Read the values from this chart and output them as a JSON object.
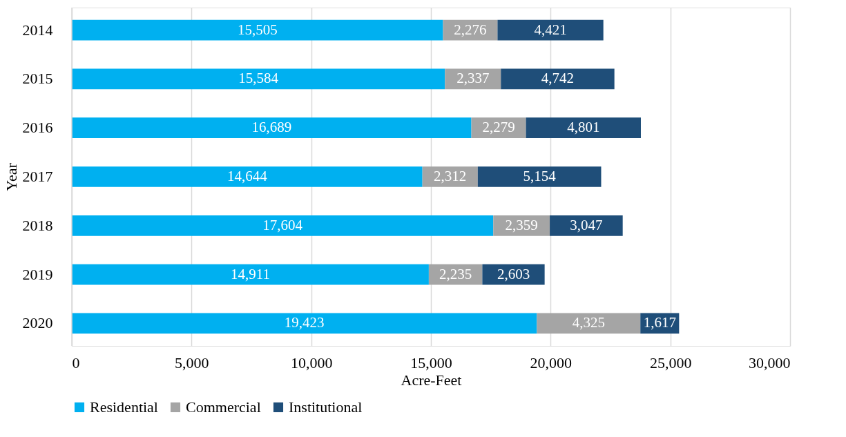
{
  "chart_data": {
    "type": "bar",
    "orientation": "horizontal",
    "stacked": true,
    "xlabel": "Acre-Feet",
    "ylabel": "Year",
    "categories": [
      "2014",
      "2015",
      "2016",
      "2017",
      "2018",
      "2019",
      "2020"
    ],
    "series": [
      {
        "name": "Residential",
        "color": "#00b0f0",
        "values": [
          15505,
          15584,
          16689,
          14644,
          17604,
          14911,
          19423
        ],
        "value_labels": [
          "15,505",
          "15,584",
          "16,689",
          "14,644",
          "17,604",
          "14,911",
          "19,423"
        ]
      },
      {
        "name": "Commercial",
        "color": "#a5a5a5",
        "values": [
          2276,
          2337,
          2279,
          2312,
          2359,
          2235,
          4325
        ],
        "value_labels": [
          "2,276",
          "2,337",
          "2,279",
          "2,312",
          "2,359",
          "2,235",
          "4,325"
        ]
      },
      {
        "name": "Institutional",
        "color": "#1f4e79",
        "values": [
          4421,
          4742,
          4801,
          5154,
          3047,
          2603,
          1617
        ],
        "value_labels": [
          "4,421",
          "4,742",
          "4,801",
          "5,154",
          "3,047",
          "2,603",
          "1,617"
        ]
      }
    ],
    "xlim": [
      0,
      30000
    ],
    "xticks": [
      {
        "value": 0,
        "label": "0"
      },
      {
        "value": 5000,
        "label": "5,000"
      },
      {
        "value": 10000,
        "label": "10,000"
      },
      {
        "value": 15000,
        "label": "15,000"
      },
      {
        "value": 20000,
        "label": "20,000"
      },
      {
        "value": 25000,
        "label": "25,000"
      },
      {
        "value": 30000,
        "label": "30,000"
      }
    ],
    "grid": "x",
    "legend": "bottom"
  }
}
